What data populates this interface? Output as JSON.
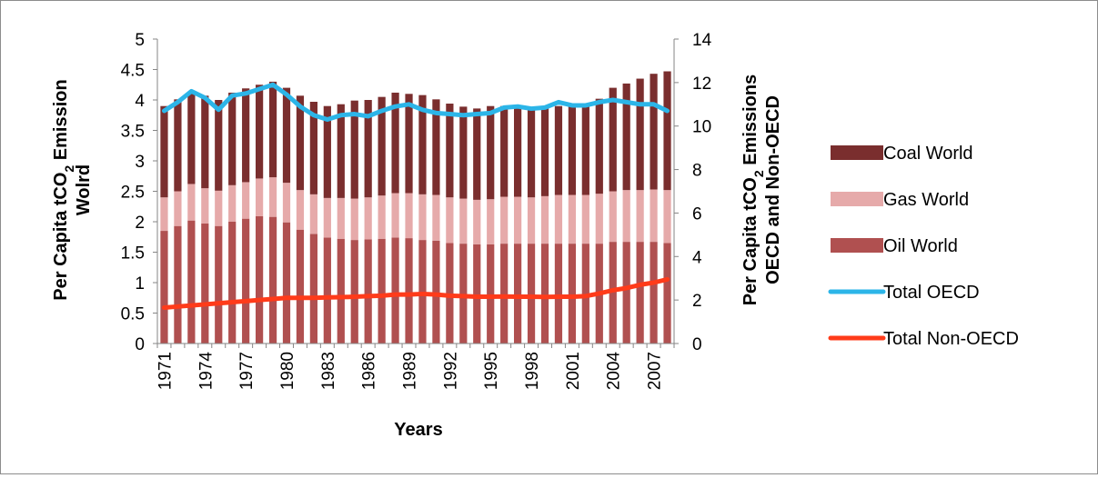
{
  "chart_data": {
    "type": "bar",
    "title": "",
    "xlabel": "Years",
    "ylabel": "Per Capita tCO₂ Emission Wolrd",
    "ylabel_line1": "Per Capita tCO",
    "ylabel_sub": "2",
    "ylabel_line1_end": " Emission",
    "ylabel_line2": "Wolrd",
    "y2label": "Per Capita tCO₂ Emissions OECD and Non-OECD",
    "y2label_line1": "Per Capita tCO",
    "y2label_sub": "2",
    "y2label_line1_end": " Emissions",
    "y2label_line2": "OECD and Non-OECD",
    "ylim": [
      0,
      5
    ],
    "y_ticks": [
      "0",
      "0.5",
      "1",
      "1.5",
      "2",
      "2.5",
      "3",
      "3.5",
      "4",
      "4.5",
      "5"
    ],
    "y2lim": [
      0,
      14
    ],
    "y2_ticks": [
      "0",
      "2",
      "4",
      "6",
      "8",
      "10",
      "12",
      "14"
    ],
    "x_tick_labels": [
      "1971",
      "1974",
      "1977",
      "1980",
      "1983",
      "1986",
      "1989",
      "1992",
      "1995",
      "1998",
      "2001",
      "2004",
      "2007"
    ],
    "grid": false,
    "legend_position": "right",
    "categories": [
      "1971",
      "1972",
      "1973",
      "1974",
      "1975",
      "1976",
      "1977",
      "1978",
      "1979",
      "1980",
      "1981",
      "1982",
      "1983",
      "1984",
      "1985",
      "1986",
      "1987",
      "1988",
      "1989",
      "1990",
      "1991",
      "1992",
      "1993",
      "1994",
      "1995",
      "1996",
      "1997",
      "1998",
      "1999",
      "2000",
      "2001",
      "2002",
      "2003",
      "2004",
      "2005",
      "2006",
      "2007",
      "2008"
    ],
    "series": [
      {
        "name": "Oil World",
        "axis": "left",
        "kind": "stacked-bar",
        "color": "#b05050",
        "values": [
          1.85,
          1.93,
          2.02,
          1.97,
          1.93,
          2.0,
          2.05,
          2.09,
          2.08,
          1.99,
          1.87,
          1.8,
          1.74,
          1.72,
          1.7,
          1.71,
          1.72,
          1.74,
          1.73,
          1.7,
          1.69,
          1.65,
          1.64,
          1.63,
          1.63,
          1.64,
          1.64,
          1.64,
          1.64,
          1.64,
          1.64,
          1.64,
          1.64,
          1.67,
          1.67,
          1.67,
          1.67,
          1.65
        ]
      },
      {
        "name": "Gas World",
        "axis": "left",
        "kind": "stacked-bar",
        "color": "#e6aaaa",
        "values": [
          0.55,
          0.57,
          0.6,
          0.58,
          0.58,
          0.6,
          0.6,
          0.62,
          0.65,
          0.65,
          0.65,
          0.65,
          0.65,
          0.67,
          0.68,
          0.69,
          0.71,
          0.73,
          0.74,
          0.75,
          0.75,
          0.75,
          0.74,
          0.73,
          0.74,
          0.77,
          0.77,
          0.76,
          0.78,
          0.8,
          0.8,
          0.8,
          0.82,
          0.83,
          0.85,
          0.85,
          0.86,
          0.87
        ]
      },
      {
        "name": "Coal World",
        "axis": "left",
        "kind": "stacked-bar",
        "color": "#7a2e2e",
        "values": [
          1.5,
          1.51,
          1.48,
          1.52,
          1.49,
          1.52,
          1.54,
          1.54,
          1.57,
          1.56,
          1.55,
          1.52,
          1.51,
          1.54,
          1.61,
          1.6,
          1.62,
          1.65,
          1.63,
          1.63,
          1.57,
          1.54,
          1.51,
          1.5,
          1.53,
          1.49,
          1.48,
          1.48,
          1.46,
          1.46,
          1.47,
          1.49,
          1.56,
          1.7,
          1.75,
          1.83,
          1.9,
          1.95
        ]
      },
      {
        "name": "Total OECD",
        "axis": "right",
        "kind": "line",
        "color": "#2cb5e8",
        "values": [
          10.7,
          11.1,
          11.6,
          11.3,
          10.75,
          11.4,
          11.5,
          11.7,
          11.9,
          11.45,
          10.9,
          10.5,
          10.3,
          10.5,
          10.55,
          10.45,
          10.7,
          10.9,
          11.0,
          10.75,
          10.6,
          10.55,
          10.5,
          10.55,
          10.6,
          10.85,
          10.9,
          10.8,
          10.85,
          11.1,
          10.95,
          10.95,
          11.1,
          11.2,
          11.1,
          11.0,
          11.0,
          10.7
        ]
      },
      {
        "name": "Total Non-OECD",
        "axis": "right",
        "kind": "line",
        "color": "#ff3b1a",
        "values": [
          1.65,
          1.7,
          1.75,
          1.8,
          1.85,
          1.9,
          1.95,
          2.0,
          2.05,
          2.1,
          2.1,
          2.1,
          2.12,
          2.13,
          2.15,
          2.18,
          2.2,
          2.25,
          2.25,
          2.28,
          2.25,
          2.2,
          2.18,
          2.15,
          2.15,
          2.16,
          2.15,
          2.15,
          2.14,
          2.15,
          2.15,
          2.18,
          2.3,
          2.45,
          2.55,
          2.7,
          2.8,
          2.95
        ]
      }
    ],
    "legend_order": [
      "Coal World",
      "Gas World",
      "Oil World",
      "Total OECD",
      "Total Non-OECD"
    ]
  }
}
